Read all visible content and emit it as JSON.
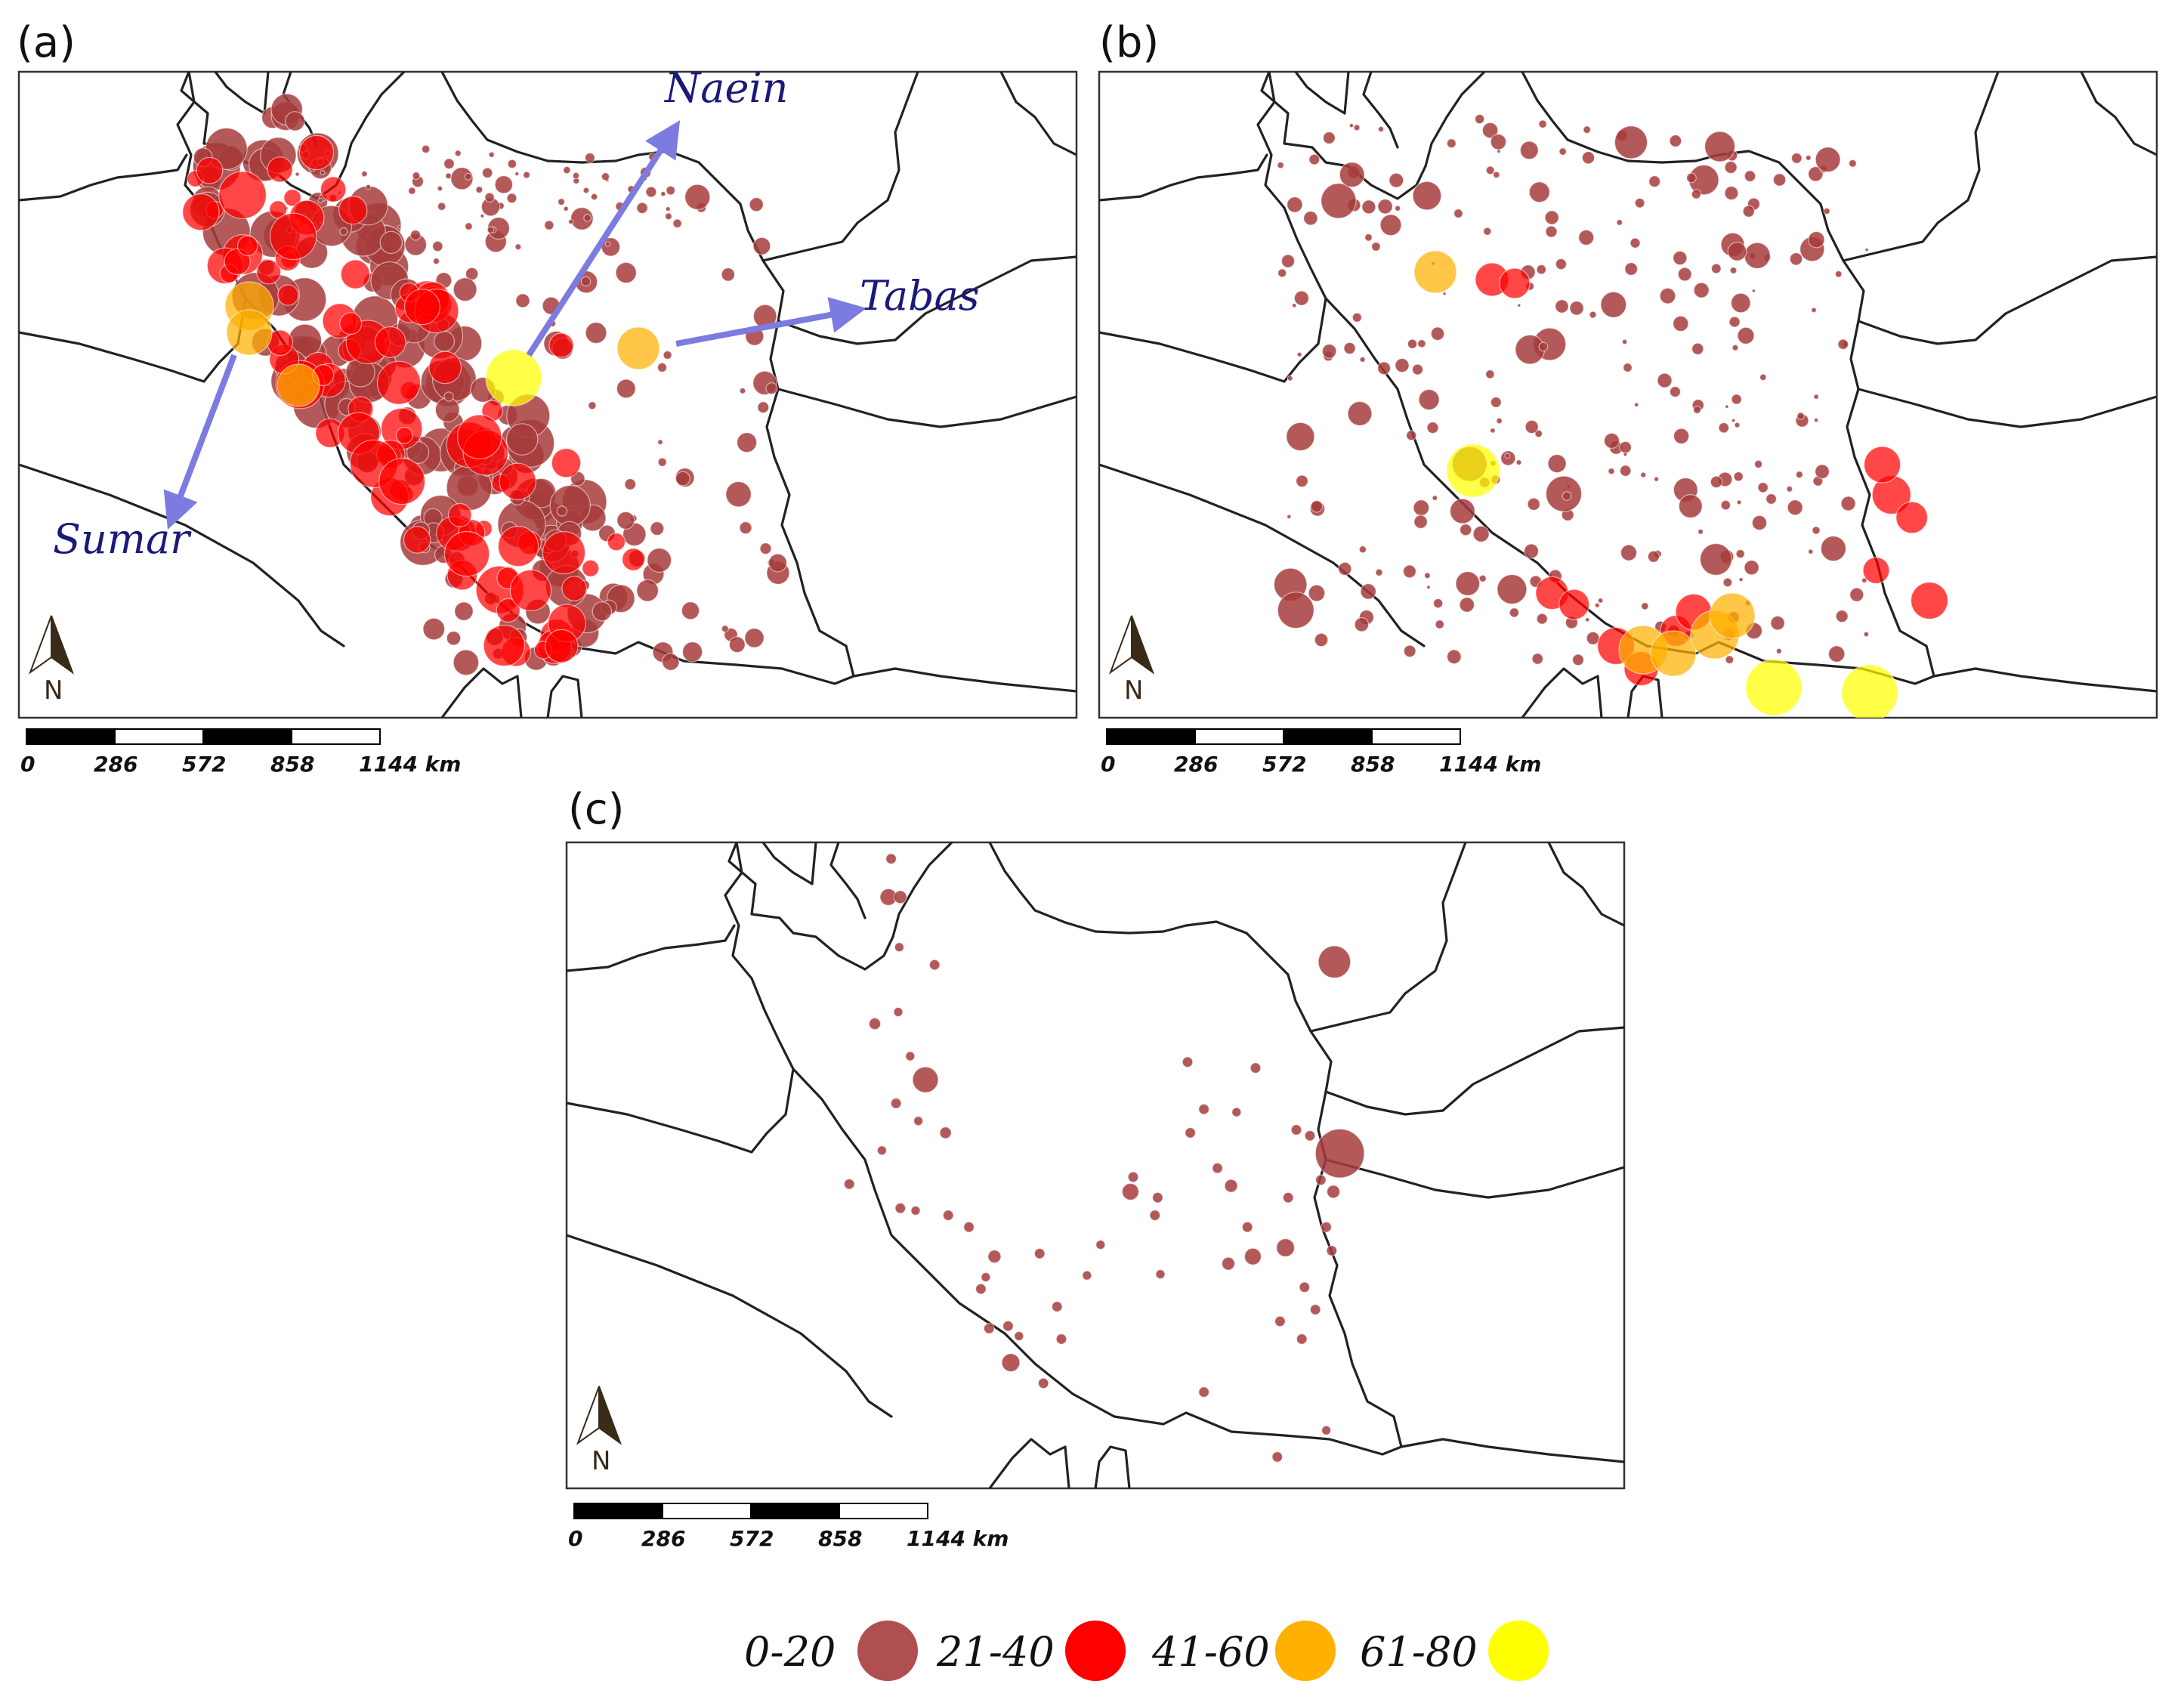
{
  "panels": [
    {
      "id": "a",
      "label": "(a)",
      "scale": {
        "ticks": [
          "0",
          "286",
          "572",
          "858",
          "1144 km"
        ]
      },
      "north_label": "N",
      "annotations": [
        {
          "name": "naein",
          "label": "Naein"
        },
        {
          "name": "tabas",
          "label": "Tabas"
        },
        {
          "name": "sumar",
          "label": "Sumar"
        }
      ]
    },
    {
      "id": "b",
      "label": "(b)",
      "scale": {
        "ticks": [
          "0",
          "286",
          "572",
          "858",
          "1144 km"
        ]
      },
      "north_label": "N",
      "annotations": []
    },
    {
      "id": "c",
      "label": "(c)",
      "scale": {
        "ticks": [
          "0",
          "286",
          "572",
          "858",
          "1144 km"
        ]
      },
      "north_label": "N",
      "annotations": []
    }
  ],
  "legend": {
    "classes": [
      {
        "label": "0-20",
        "color": "#a63c3c"
      },
      {
        "label": "21-40",
        "color": "#ff0000"
      },
      {
        "label": "41-60",
        "color": "#ffb000"
      },
      {
        "label": "61-80",
        "color": "#ffff00"
      }
    ]
  },
  "colors": {
    "class_0_20": "#a63c3c",
    "class_21_40": "#ff0000",
    "class_41_60": "#ffb000",
    "class_61_80": "#ffff00",
    "arrow": "#7b7be0",
    "annotation_text": "#1a1a7a",
    "border": "#222222"
  }
}
